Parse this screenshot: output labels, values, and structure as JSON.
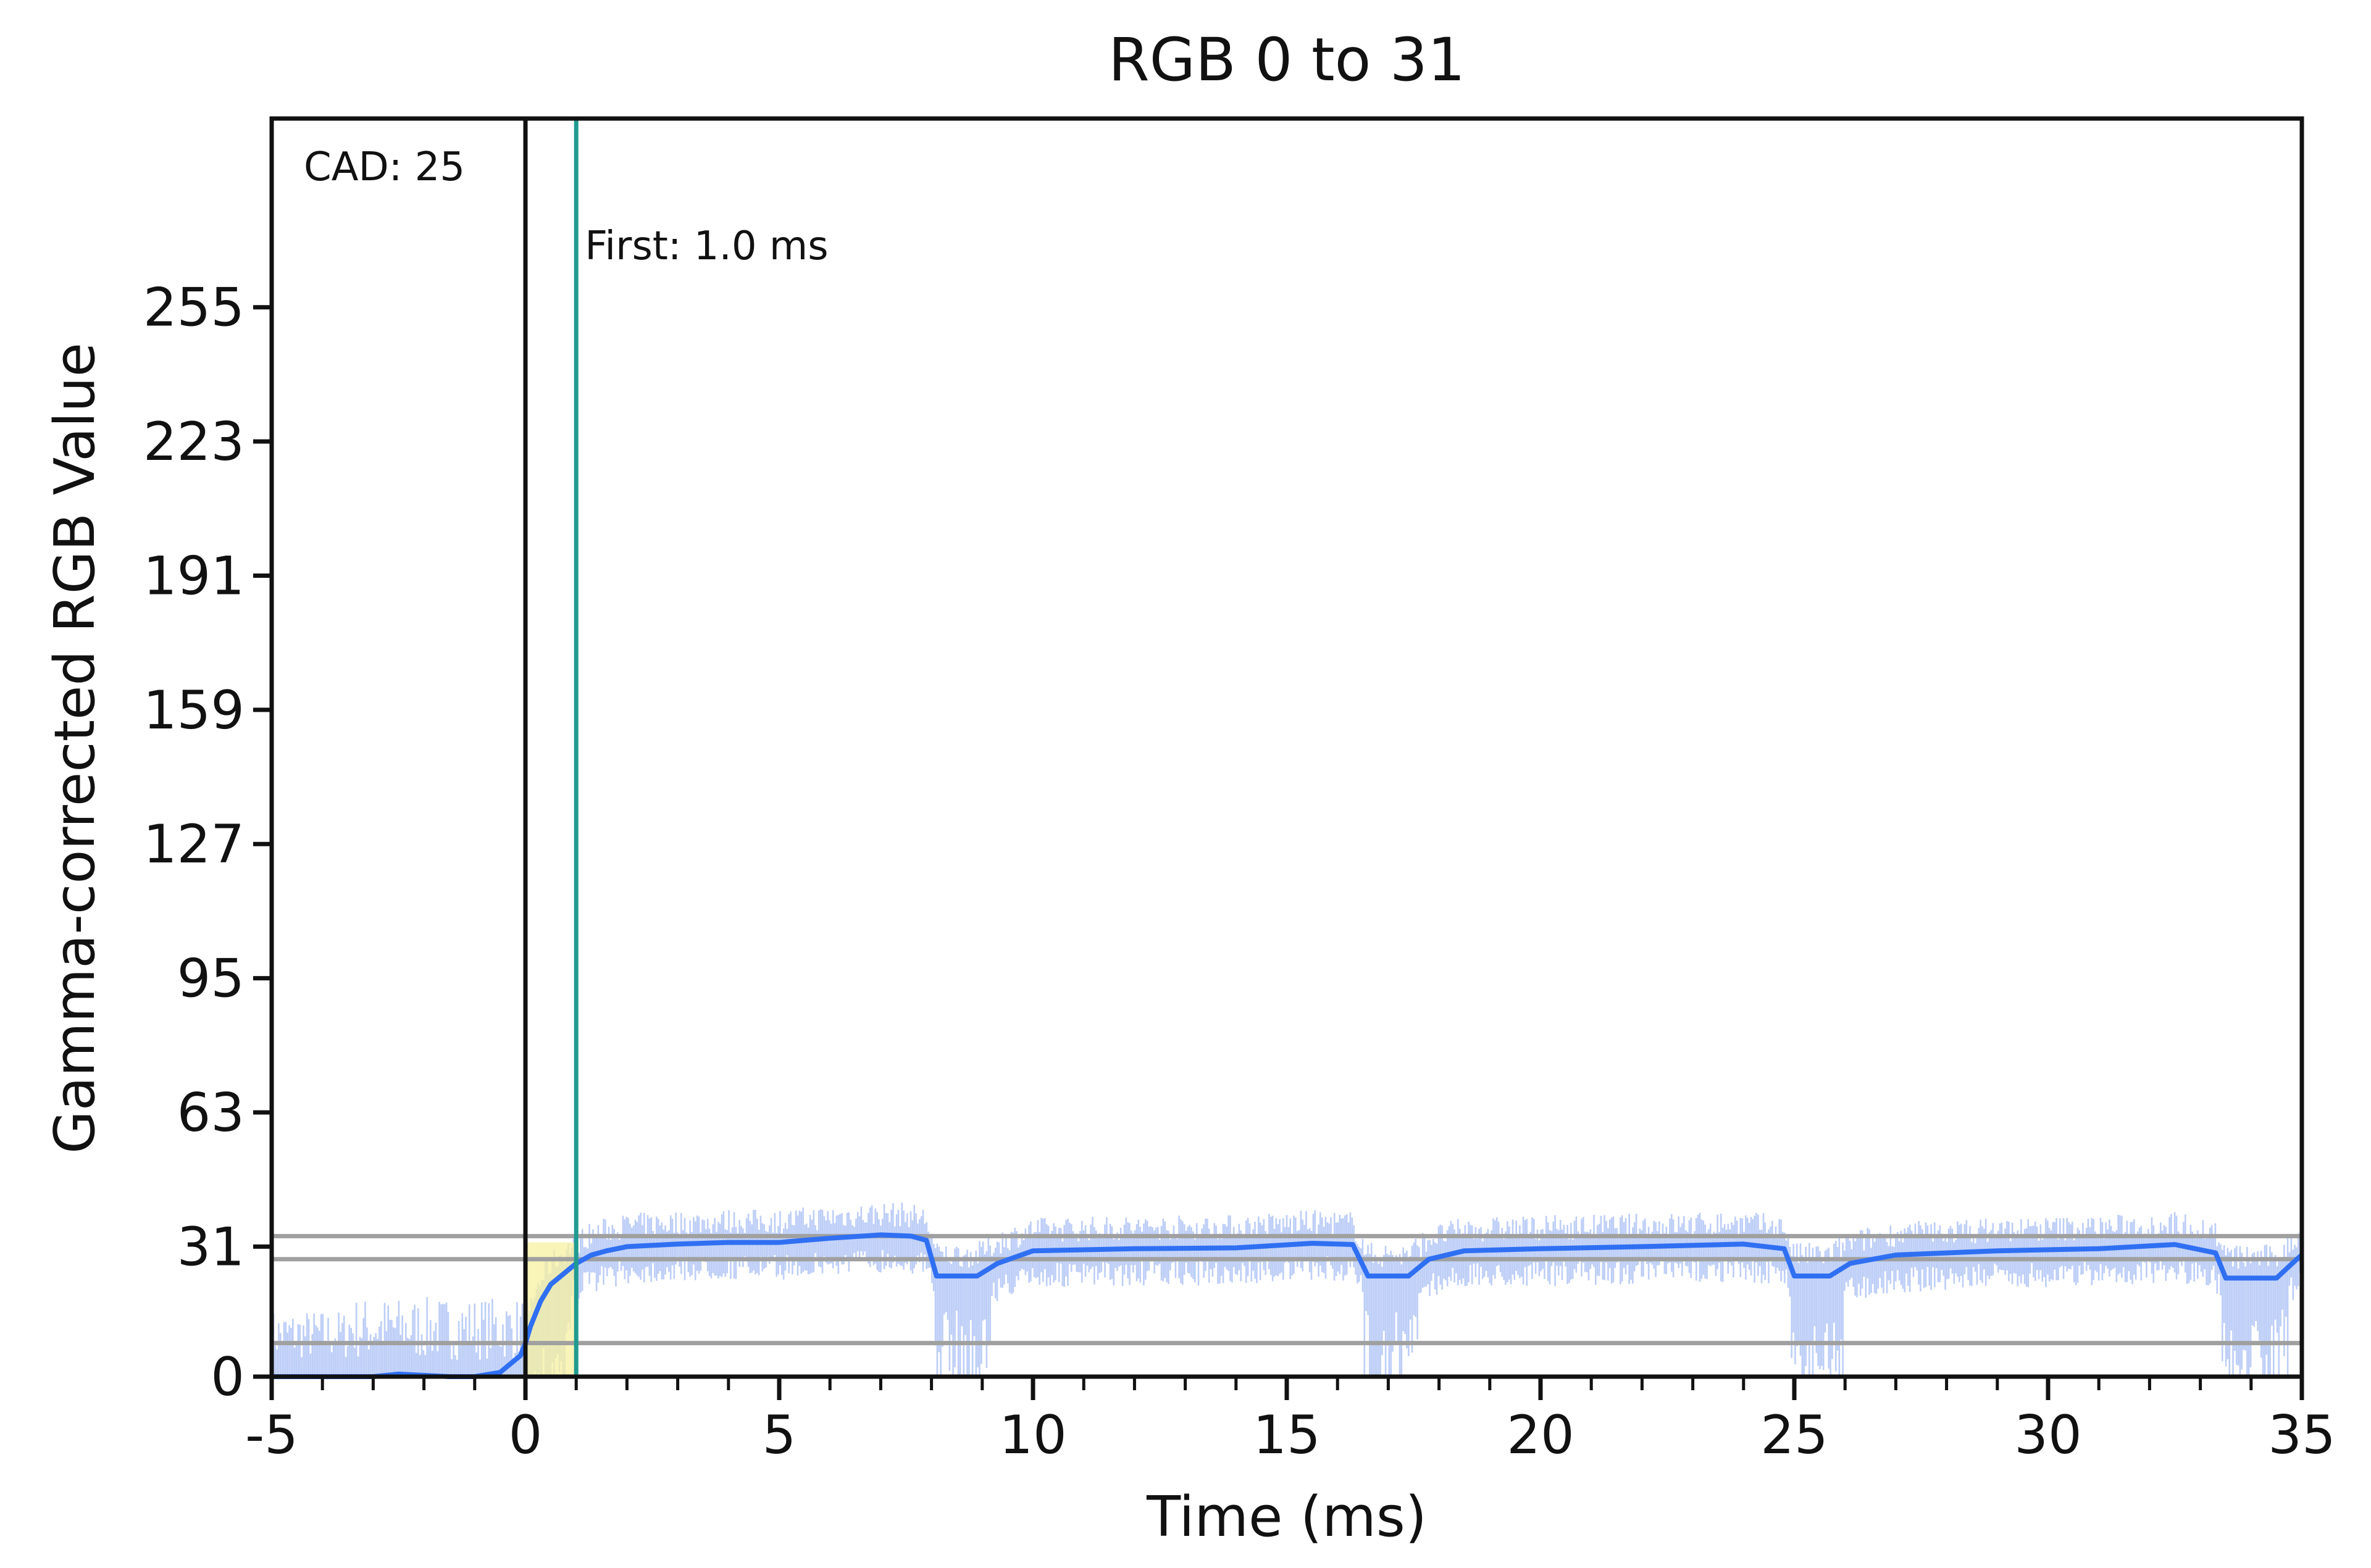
{
  "chart_data": {
    "type": "line",
    "title": "RGB 0 to 31",
    "xlabel": "Time (ms)",
    "ylabel": "Gamma-corrected RGB Value",
    "xlim": [
      -5,
      35
    ],
    "ylim": [
      0,
      300
    ],
    "x_ticks": [
      -5,
      0,
      5,
      10,
      15,
      20,
      25,
      30,
      35
    ],
    "x_tick_labels": [
      "-5",
      "0",
      "5",
      "10",
      "15",
      "20",
      "25",
      "30",
      "35"
    ],
    "y_ticks": [
      0,
      31,
      63,
      95,
      127,
      159,
      191,
      223,
      255
    ],
    "y_tick_labels": [
      "0",
      "31",
      "63",
      "95",
      "127",
      "159",
      "191",
      "223",
      "255"
    ],
    "annotations": {
      "cad_label": "CAD: 25",
      "first_label": "First: 1.0 ms"
    },
    "markers": {
      "start_time": 0,
      "first_time": 1.0
    },
    "reference_lines": [
      33.5,
      28,
      8
    ],
    "highlight_region": [
      0,
      1.0
    ],
    "colors": {
      "smoothed": "#2f6ff2",
      "raw": "#bccdf7",
      "first_line": "#1f9a90",
      "reference": "#a0a0a0",
      "highlight": "#f7f0a0",
      "start_line": "#111111"
    },
    "series": [
      {
        "x": [
          -5,
          -3,
          -2.5,
          -1.5,
          -1,
          -0.5,
          -0.3,
          -0.1,
          0,
          0.1,
          0.2,
          0.3,
          0.5,
          0.7,
          1.0,
          1.3,
          1.6,
          2,
          3,
          4,
          5,
          6,
          7,
          7.6,
          7.9,
          8.1,
          8.9,
          9.3,
          10,
          12,
          14,
          15.5,
          16.3,
          16.6,
          17.4,
          17.8,
          18.5,
          20,
          22,
          24,
          24.8,
          25,
          25.7,
          26.1,
          27,
          29,
          31,
          32.5,
          33.3,
          33.5,
          34.5,
          34.9,
          35
        ],
        "y": [
          0,
          0,
          0.6,
          0,
          0,
          1,
          3,
          5,
          8,
          12,
          15,
          18,
          22,
          24,
          27,
          29,
          30,
          31,
          31.6,
          32,
          32,
          33,
          33.8,
          33.5,
          32.5,
          24,
          24,
          27,
          30,
          30.5,
          30.7,
          31.8,
          31.5,
          24,
          24,
          28,
          30,
          30.5,
          31,
          31.6,
          30.5,
          24,
          24,
          27,
          29,
          30,
          30.5,
          31.5,
          29.5,
          23.5,
          23.5,
          28,
          29
        ]
      }
    ]
  }
}
